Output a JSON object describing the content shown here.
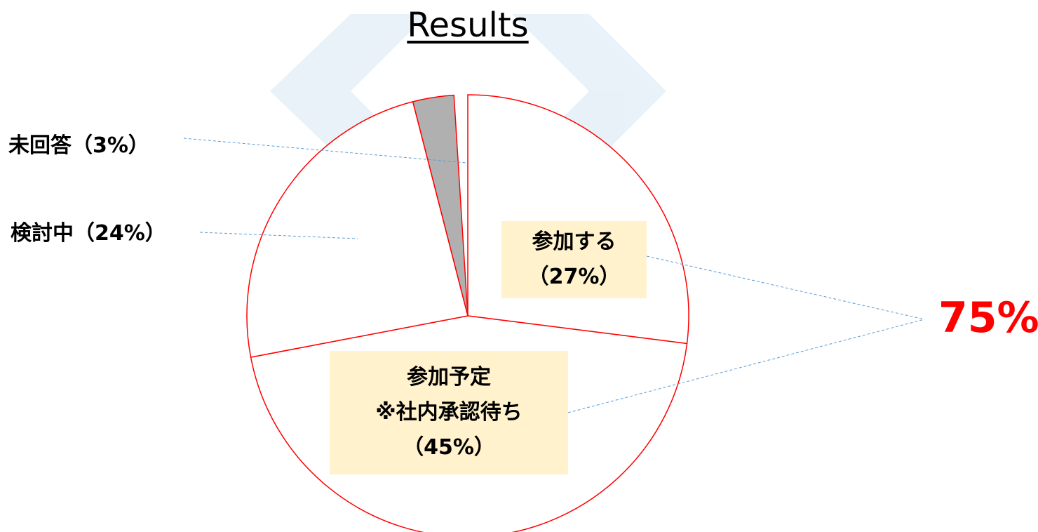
{
  "chart_data": {
    "type": "pie",
    "title": "Results",
    "categories": [
      "参加する",
      "参加予定\n※社内承認待ち",
      "検討中",
      "未回答"
    ],
    "values": [
      27,
      45,
      24,
      3
    ],
    "value_labels": [
      "（27%）",
      "（45%）",
      "（24%）",
      "（3%）"
    ],
    "colors": [
      "#ffffff",
      "#ffffff",
      "#ffffff",
      "#b0b0b0"
    ],
    "stroke": "#ff0000",
    "annotation": "75%"
  }
}
